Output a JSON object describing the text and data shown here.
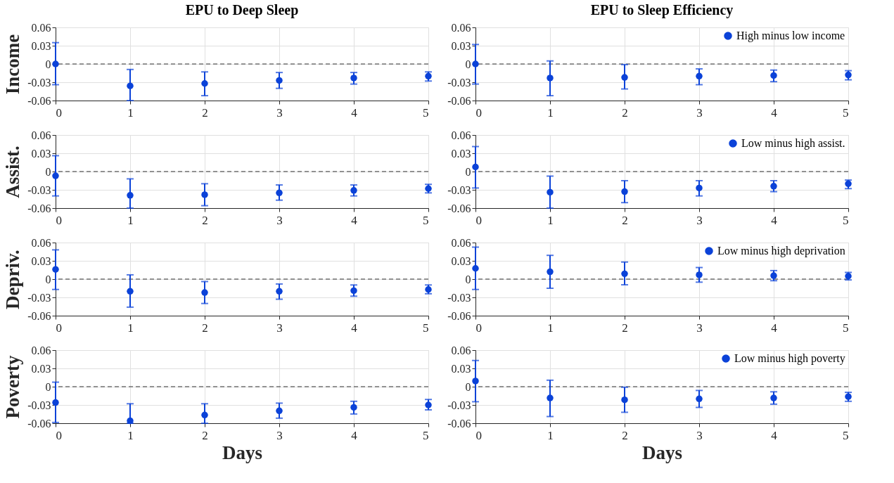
{
  "chart_data": [
    {
      "type": "scatter",
      "title": "EPU to Deep Sleep",
      "ylabel": "Income",
      "x": [
        0,
        1,
        2,
        3,
        4,
        5
      ],
      "xlim": [
        0,
        5
      ],
      "xticks": [
        0,
        1,
        2,
        3,
        4,
        5
      ],
      "ylim": [
        -0.06,
        0.06
      ],
      "yticks": [
        -0.06,
        -0.03,
        0,
        0.03,
        0.06
      ],
      "grid": true,
      "marker": "circle",
      "legend": false,
      "ref_lines": [
        {
          "axis": "y",
          "value": 0,
          "line_style": "dashed",
          "color": "#333333"
        }
      ],
      "series": [
        {
          "color": "#0b42d8",
          "values": [
            0,
            -0.036,
            -0.032,
            -0.027,
            -0.023,
            -0.02
          ],
          "errors": [
            [
              -0.034,
              0.035
            ],
            [
              -0.06,
              -0.009
            ],
            [
              -0.052,
              -0.013
            ],
            [
              -0.04,
              -0.014
            ],
            [
              -0.033,
              -0.014
            ],
            [
              -0.028,
              -0.013
            ]
          ]
        }
      ]
    },
    {
      "type": "scatter",
      "title": "EPU to Sleep Efficiency",
      "x": [
        0,
        1,
        2,
        3,
        4,
        5
      ],
      "xlim": [
        0,
        5
      ],
      "xticks": [
        0,
        1,
        2,
        3,
        4,
        5
      ],
      "ylim": [
        -0.06,
        0.06
      ],
      "yticks": [
        -0.06,
        -0.03,
        0,
        0.03,
        0.06
      ],
      "grid": true,
      "marker": "circle",
      "legend": "top right",
      "ref_lines": [
        {
          "axis": "y",
          "value": 0,
          "line_style": "dashed",
          "color": "#333333"
        }
      ],
      "series": [
        {
          "name": "High minus low income",
          "color": "#0b42d8",
          "values": [
            0,
            -0.023,
            -0.022,
            -0.02,
            -0.019,
            -0.018
          ],
          "errors": [
            [
              -0.033,
              0.032
            ],
            [
              -0.052,
              0.005
            ],
            [
              -0.041,
              -0.001
            ],
            [
              -0.034,
              -0.008
            ],
            [
              -0.029,
              -0.01
            ],
            [
              -0.026,
              -0.011
            ]
          ]
        }
      ]
    },
    {
      "type": "scatter",
      "ylabel": "Assist.",
      "x": [
        0,
        1,
        2,
        3,
        4,
        5
      ],
      "xlim": [
        0,
        5
      ],
      "xticks": [
        0,
        1,
        2,
        3,
        4,
        5
      ],
      "ylim": [
        -0.06,
        0.06
      ],
      "yticks": [
        -0.06,
        -0.03,
        0,
        0.03,
        0.06
      ],
      "grid": true,
      "marker": "circle",
      "legend": false,
      "ref_lines": [
        {
          "axis": "y",
          "value": 0,
          "line_style": "dashed",
          "color": "#333333"
        }
      ],
      "series": [
        {
          "color": "#0b42d8",
          "values": [
            -0.007,
            -0.039,
            -0.038,
            -0.035,
            -0.031,
            -0.028
          ],
          "errors": [
            [
              -0.04,
              0.026
            ],
            [
              -0.06,
              -0.012
            ],
            [
              -0.056,
              -0.02
            ],
            [
              -0.047,
              -0.022
            ],
            [
              -0.04,
              -0.022
            ],
            [
              -0.035,
              -0.021
            ]
          ]
        }
      ]
    },
    {
      "type": "scatter",
      "x": [
        0,
        1,
        2,
        3,
        4,
        5
      ],
      "xlim": [
        0,
        5
      ],
      "xticks": [
        0,
        1,
        2,
        3,
        4,
        5
      ],
      "ylim": [
        -0.06,
        0.06
      ],
      "yticks": [
        -0.06,
        -0.03,
        0,
        0.03,
        0.06
      ],
      "grid": true,
      "marker": "circle",
      "legend": "top right",
      "ref_lines": [
        {
          "axis": "y",
          "value": 0,
          "line_style": "dashed",
          "color": "#333333"
        }
      ],
      "series": [
        {
          "name": "Low minus high assist.",
          "color": "#0b42d8",
          "values": [
            0.0075,
            -0.034,
            -0.033,
            -0.027,
            -0.024,
            -0.02
          ],
          "errors": [
            [
              -0.027,
              0.041
            ],
            [
              -0.06,
              -0.0075
            ],
            [
              -0.051,
              -0.015
            ],
            [
              -0.04,
              -0.015
            ],
            [
              -0.033,
              -0.015
            ],
            [
              -0.028,
              -0.014
            ]
          ]
        }
      ]
    },
    {
      "type": "scatter",
      "ylabel": "Depriv.",
      "x": [
        0,
        1,
        2,
        3,
        4,
        5
      ],
      "xlim": [
        0,
        5
      ],
      "xticks": [
        0,
        1,
        2,
        3,
        4,
        5
      ],
      "ylim": [
        -0.06,
        0.06
      ],
      "yticks": [
        -0.06,
        -0.03,
        0,
        0.03,
        0.06
      ],
      "grid": true,
      "marker": "circle",
      "legend": false,
      "ref_lines": [
        {
          "axis": "y",
          "value": 0,
          "line_style": "dashed",
          "color": "#333333"
        }
      ],
      "series": [
        {
          "color": "#0b42d8",
          "values": [
            0.016,
            -0.02,
            -0.022,
            -0.02,
            -0.019,
            -0.017
          ],
          "errors": [
            [
              -0.017,
              0.048
            ],
            [
              -0.046,
              0.007
            ],
            [
              -0.04,
              -0.004
            ],
            [
              -0.033,
              -0.008
            ],
            [
              -0.028,
              -0.0096
            ],
            [
              -0.024,
              -0.0096
            ]
          ]
        }
      ]
    },
    {
      "type": "scatter",
      "x": [
        0,
        1,
        2,
        3,
        4,
        5
      ],
      "xlim": [
        0,
        5
      ],
      "xticks": [
        0,
        1,
        2,
        3,
        4,
        5
      ],
      "ylim": [
        -0.06,
        0.06
      ],
      "yticks": [
        -0.06,
        -0.03,
        0,
        0.03,
        0.06
      ],
      "grid": true,
      "marker": "circle",
      "legend": "top right",
      "ref_lines": [
        {
          "axis": "y",
          "value": 0,
          "line_style": "dashed",
          "color": "#333333"
        }
      ],
      "series": [
        {
          "name": "Low minus high deprivation",
          "color": "#0b42d8",
          "values": [
            0.0176,
            0.012,
            0.0088,
            0.007,
            0.0057,
            0.0049
          ],
          "errors": [
            [
              -0.017,
              0.0525
            ],
            [
              -0.015,
              0.039
            ],
            [
              -0.0093,
              0.028
            ],
            [
              -0.005,
              0.019
            ],
            [
              -0.0026,
              0.014
            ],
            [
              -0.0013,
              0.011
            ]
          ]
        }
      ]
    },
    {
      "type": "scatter",
      "ylabel": "Poverty",
      "xlabel": "Days",
      "x": [
        0,
        1,
        2,
        3,
        4,
        5
      ],
      "xlim": [
        0,
        5
      ],
      "xticks": [
        0,
        1,
        2,
        3,
        4,
        5
      ],
      "ylim": [
        -0.06,
        0.06
      ],
      "yticks": [
        -0.06,
        -0.03,
        0,
        0.03,
        0.06
      ],
      "grid": true,
      "marker": "circle",
      "legend": false,
      "ref_lines": [
        {
          "axis": "y",
          "value": 0,
          "line_style": "dashed",
          "color": "#333333"
        }
      ],
      "series": [
        {
          "color": "#0b42d8",
          "values": [
            -0.026,
            -0.056,
            -0.0465,
            -0.0396,
            -0.034,
            -0.03
          ],
          "errors": [
            [
              -0.0587,
              0.0074
            ],
            [
              -0.06,
              -0.028
            ],
            [
              -0.06,
              -0.028
            ],
            [
              -0.0517,
              -0.027
            ],
            [
              -0.0448,
              -0.024
            ],
            [
              -0.038,
              -0.021
            ]
          ]
        }
      ]
    },
    {
      "type": "scatter",
      "xlabel": "Days",
      "x": [
        0,
        1,
        2,
        3,
        4,
        5
      ],
      "xlim": [
        0,
        5
      ],
      "xticks": [
        0,
        1,
        2,
        3,
        4,
        5
      ],
      "ylim": [
        -0.06,
        0.06
      ],
      "yticks": [
        -0.06,
        -0.03,
        0,
        0.03,
        0.06
      ],
      "grid": true,
      "marker": "circle",
      "legend": "top right",
      "ref_lines": [
        {
          "axis": "y",
          "value": 0,
          "line_style": "dashed",
          "color": "#333333"
        }
      ],
      "series": [
        {
          "name": "Low minus high poverty",
          "color": "#0b42d8",
          "values": [
            0.0093,
            -0.0185,
            -0.0216,
            -0.02,
            -0.0185,
            -0.0163
          ],
          "errors": [
            [
              -0.0247,
              0.043
            ],
            [
              -0.049,
              0.0106
            ],
            [
              -0.042,
              -0.0009
            ],
            [
              -0.034,
              -0.0062
            ],
            [
              -0.0287,
              -0.0084
            ],
            [
              -0.024,
              -0.0093
            ]
          ]
        }
      ]
    }
  ]
}
